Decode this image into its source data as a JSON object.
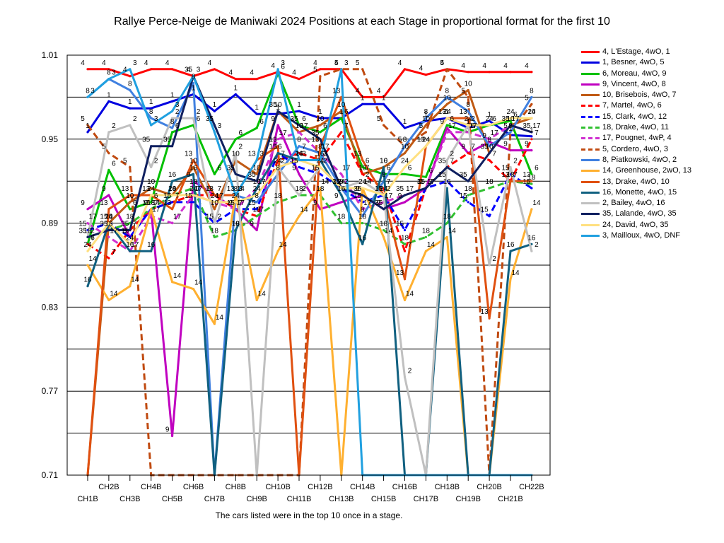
{
  "title": "Rallye Perce-Neige de Maniwaki 2024  Positions at each Stage in proportional format for the first 10",
  "footnote": "The cars listed were in the top 10 once in a stage.",
  "chart_data": {
    "type": "line",
    "title": "Rallye Perce-Neige de Maniwaki 2024  Positions at each Stage in proportional format for the first 10",
    "xlabel": "",
    "ylabel": "",
    "ylim": [
      0.71,
      1.01
    ],
    "y_ticks": [
      "0.71",
      "0.77",
      "0.83",
      "0.89",
      "0.95",
      "1.01"
    ],
    "grid": true,
    "legend_position": "right",
    "categories": [
      "CH1B",
      "CH2B",
      "CH3B",
      "CH4B",
      "CH5B",
      "CH6B",
      "CH7B",
      "CH8B",
      "CH9B",
      "CH10B",
      "CH11B",
      "CH12B",
      "CH13B",
      "CH14B",
      "CH15B",
      "CH16B",
      "CH17B",
      "CH18B",
      "CH19B",
      "CH20B",
      "CH21B",
      "CH22B"
    ],
    "series": [
      {
        "name": "4, L'Estage, 4wO, 1",
        "label": "4",
        "color": "#ff0000",
        "dashed": false,
        "values": [
          1.0,
          1.0,
          0.995,
          1.0,
          1.0,
          0.995,
          1.0,
          0.993,
          0.993,
          0.998,
          0.993,
          1.0,
          1.0,
          0.98,
          0.98,
          1.0,
          0.996,
          1.0,
          0.998,
          0.998,
          0.998,
          0.998
        ]
      },
      {
        "name": "1, Besner, 4wO, 5",
        "label": "1",
        "color": "#0000e0",
        "dashed": false,
        "values": [
          0.955,
          0.977,
          0.972,
          0.972,
          0.977,
          0.982,
          0.97,
          0.982,
          0.968,
          0.968,
          0.97,
          0.965,
          0.965,
          0.975,
          0.975,
          0.958,
          0.963,
          0.965,
          0.958,
          0.963,
          0.953,
          0.952
        ]
      },
      {
        "name": "6, Moreau, 4wO, 9",
        "label": "6",
        "color": "#00c000",
        "dashed": false,
        "values": [
          0.875,
          0.928,
          0.9,
          0.905,
          0.955,
          0.96,
          0.925,
          0.95,
          0.958,
          0.997,
          0.96,
          0.955,
          0.965,
          0.93,
          0.925,
          0.925,
          0.923,
          0.96,
          0.955,
          0.96,
          0.963,
          0.925
        ]
      },
      {
        "name": "9, Vincent, 4wO, 8",
        "label": "9",
        "color": "#c000c0",
        "dashed": false,
        "values": [
          0.9,
          0.91,
          0.88,
          0.9,
          0.738,
          0.92,
          0.91,
          0.9,
          0.885,
          0.96,
          0.925,
          0.9,
          0.905,
          0.91,
          0.9,
          0.905,
          0.915,
          0.958,
          0.94,
          0.948,
          0.942,
          0.942
        ]
      },
      {
        "name": "10, Brisebois, 4wO, 7",
        "label": "10",
        "color": "#c05a14",
        "dashed": false,
        "values": [
          0.71,
          0.89,
          0.905,
          0.915,
          0.91,
          0.93,
          0.9,
          0.935,
          0.925,
          0.97,
          0.955,
          0.96,
          0.97,
          0.925,
          0.93,
          0.94,
          0.96,
          0.975,
          0.985,
          0.94,
          0.96,
          0.965
        ]
      },
      {
        "name": "7, Martel, 4wO, 6",
        "label": "7",
        "color": "#ff0000",
        "dashed": true,
        "values": [
          0.875,
          0.865,
          0.885,
          0.9,
          0.905,
          0.91,
          0.91,
          0.9,
          0.895,
          0.935,
          0.94,
          0.935,
          0.955,
          0.925,
          0.915,
          0.87,
          0.915,
          0.93,
          0.94,
          0.935,
          0.92,
          0.95
        ]
      },
      {
        "name": "15, Clark, 4wO, 12",
        "label": "15",
        "color": "#0000ff",
        "dashed": true,
        "values": [
          0.885,
          0.89,
          0.88,
          0.9,
          0.905,
          0.905,
          0.89,
          0.9,
          0.9,
          0.94,
          0.93,
          0.925,
          0.915,
          0.905,
          0.91,
          0.885,
          0.915,
          0.92,
          0.905,
          0.895,
          0.925,
          0.915
        ]
      },
      {
        "name": "18, Drake, 4wO, 11",
        "label": "18",
        "color": "#30c030",
        "dashed": true,
        "values": [
          0.88,
          0.885,
          0.89,
          0.9,
          0.91,
          0.915,
          0.88,
          0.885,
          0.895,
          0.905,
          0.91,
          0.91,
          0.89,
          0.89,
          0.885,
          0.875,
          0.88,
          0.89,
          0.91,
          0.915,
          0.92,
          0.918
        ]
      },
      {
        "name": "17, Pougnet, 4wP, 4",
        "label": "17",
        "color": "#d030d0",
        "dashed": true,
        "values": [
          0.89,
          0.88,
          0.87,
          0.895,
          0.89,
          0.91,
          0.905,
          0.9,
          0.915,
          0.95,
          0.955,
          0.94,
          0.925,
          0.9,
          0.905,
          0.91,
          0.915,
          0.955,
          0.955,
          0.95,
          0.96,
          0.955
        ]
      },
      {
        "name": "5, Cordero, 4wO, 3",
        "label": "5",
        "color": "#c04a10",
        "dashed": true,
        "values": [
          0.96,
          0.94,
          0.93,
          0.71,
          0.71,
          0.71,
          0.71,
          0.71,
          0.71,
          0.71,
          0.71,
          0.995,
          1.0,
          1.0,
          0.96,
          0.945,
          0.955,
          1.0,
          0.98,
          0.71,
          0.955,
          0.975
        ]
      },
      {
        "name": "8, Piatkowski, 4wO, 2",
        "label": "8",
        "color": "#4080e0",
        "dashed": false,
        "values": [
          0.98,
          0.993,
          0.985,
          0.965,
          0.958,
          0.99,
          0.71,
          0.91,
          0.905,
          0.925,
          0.945,
          0.94,
          0.915,
          0.895,
          0.92,
          0.945,
          0.965,
          0.98,
          0.97,
          0.945,
          0.955,
          0.98
        ]
      },
      {
        "name": "14, Greenhouse, 2wO, 13",
        "label": "14",
        "color": "#ffb030",
        "dashed": false,
        "values": [
          0.86,
          0.835,
          0.845,
          0.9,
          0.848,
          0.843,
          0.818,
          0.91,
          0.835,
          0.87,
          0.895,
          0.915,
          0.71,
          0.915,
          0.88,
          0.835,
          0.87,
          0.88,
          0.71,
          0.71,
          0.85,
          0.9
        ]
      },
      {
        "name": "13, Drake, 4wO, 10",
        "label": "13",
        "color": "#e05010",
        "dashed": false,
        "values": [
          0.71,
          0.9,
          0.91,
          0.91,
          0.9,
          0.935,
          0.91,
          0.91,
          0.935,
          0.945,
          0.71,
          0.945,
          0.98,
          0.935,
          0.91,
          0.85,
          0.945,
          0.965,
          0.965,
          0.822,
          0.92,
          0.92
        ]
      },
      {
        "name": "16, Monette, 4wO, 15",
        "label": "16",
        "color": "#106080",
        "dashed": false,
        "values": [
          0.845,
          0.89,
          0.87,
          0.87,
          0.92,
          0.925,
          0.71,
          0.885,
          0.915,
          0.94,
          0.935,
          0.935,
          0.91,
          0.875,
          0.93,
          0.71,
          0.71,
          0.915,
          0.71,
          0.71,
          0.87,
          0.875
        ]
      },
      {
        "name": "2, Bailey, 4wO, 16",
        "label": "2",
        "color": "#c0c0c0",
        "dashed": false,
        "values": [
          0.88,
          0.955,
          0.96,
          0.93,
          0.965,
          0.965,
          0.89,
          0.94,
          0.71,
          0.93,
          0.91,
          0.93,
          0.915,
          0.92,
          0.91,
          0.78,
          0.71,
          0.935,
          0.96,
          0.86,
          0.93,
          0.87
        ]
      },
      {
        "name": "35, Lalande, 4wO, 35",
        "label": "35",
        "color": "#102060",
        "dashed": false,
        "values": [
          0.88,
          0.885,
          0.885,
          0.945,
          0.945,
          0.995,
          0.96,
          0.925,
          0.92,
          0.97,
          0.96,
          0.95,
          0.915,
          0.91,
          0.9,
          0.91,
          0.915,
          0.93,
          0.92,
          0.94,
          0.96,
          0.955
        ]
      },
      {
        "name": "24, David, 4wO, 35",
        "label": "24",
        "color": "#ffe080",
        "dashed": false,
        "values": [
          0.87,
          0.89,
          0.875,
          0.91,
          0.91,
          0.91,
          0.905,
          0.905,
          0.91,
          0.93,
          0.935,
          0.93,
          0.915,
          0.915,
          0.91,
          0.93,
          0.945,
          0.965,
          0.96,
          0.96,
          0.965,
          0.965
        ]
      },
      {
        "name": "3, Mailloux, 4wO,  DNF",
        "label": "3",
        "color": "#20a0e0",
        "dashed": false,
        "values": [
          0.98,
          0.993,
          1.0,
          0.96,
          0.97,
          0.995,
          0.955,
          0.91,
          0.935,
          1.0,
          0.935,
          0.935,
          1.0,
          0.71,
          0.71,
          0.71,
          0.71,
          0.71,
          0.71,
          0.71,
          0.71,
          0.71
        ]
      }
    ]
  }
}
